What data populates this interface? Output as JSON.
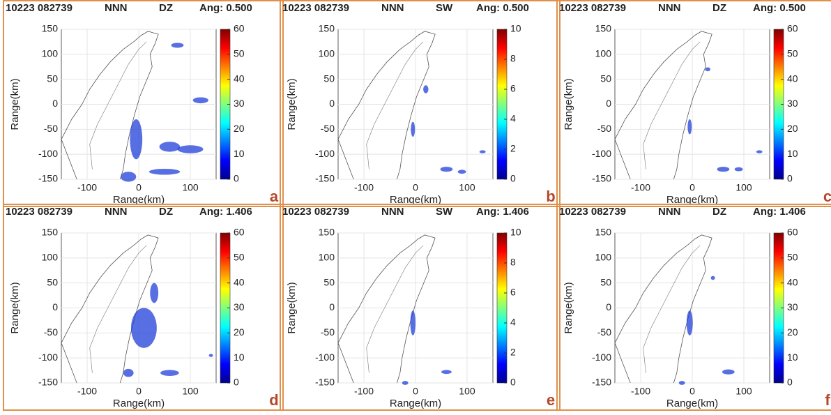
{
  "chart_data": [
    {
      "type": "radar",
      "title": [
        "10223 082739",
        "NNN",
        "DZ",
        "Ang: 0.500"
      ],
      "xlabel": "Range(km)",
      "ylabel": "Range(km)",
      "xlim": [
        -150,
        150
      ],
      "ylim": [
        -150,
        150
      ],
      "xticks": [
        -100,
        0,
        100
      ],
      "yticks": [
        -150,
        -100,
        -50,
        0,
        50,
        100,
        150
      ],
      "grid": true,
      "colorbar": {
        "lim": [
          0,
          60
        ],
        "ticks": [
          0,
          10,
          20,
          30,
          40,
          50,
          60
        ]
      },
      "panel_label": "a"
    },
    {
      "type": "radar",
      "title": [
        "10223 082739",
        "NNN",
        "SW",
        "Ang: 0.500"
      ],
      "xlabel": "Range(km)",
      "ylabel": "Range(km)",
      "xlim": [
        -150,
        150
      ],
      "ylim": [
        -150,
        150
      ],
      "xticks": [
        -100,
        0,
        100
      ],
      "yticks": [
        -150,
        -100,
        -50,
        0,
        50,
        100,
        150
      ],
      "grid": true,
      "colorbar": {
        "lim": [
          0,
          10
        ],
        "ticks": [
          0,
          2,
          4,
          6,
          8,
          10
        ]
      },
      "panel_label": "b"
    },
    {
      "type": "radar",
      "title": [
        "10223 082739",
        "NNN",
        "DZ",
        "Ang: 0.500"
      ],
      "xlabel": "Range(km)",
      "ylabel": "Range(km)",
      "xlim": [
        -150,
        150
      ],
      "ylim": [
        -150,
        150
      ],
      "xticks": [
        -100,
        0,
        100
      ],
      "yticks": [
        -150,
        -100,
        -50,
        0,
        50,
        100,
        150
      ],
      "grid": true,
      "colorbar": {
        "lim": [
          0,
          60
        ],
        "ticks": [
          0,
          10,
          20,
          30,
          40,
          50,
          60
        ]
      },
      "panel_label": "c"
    },
    {
      "type": "radar",
      "title": [
        "10223 082739",
        "NNN",
        "DZ",
        "Ang: 1.406"
      ],
      "xlabel": "Range(km)",
      "ylabel": "Range(km)",
      "xlim": [
        -150,
        150
      ],
      "ylim": [
        -150,
        150
      ],
      "xticks": [
        -100,
        0,
        100
      ],
      "yticks": [
        -150,
        -100,
        -50,
        0,
        50,
        100,
        150
      ],
      "grid": true,
      "colorbar": {
        "lim": [
          0,
          60
        ],
        "ticks": [
          0,
          10,
          20,
          30,
          40,
          50,
          60
        ]
      },
      "panel_label": "d"
    },
    {
      "type": "radar",
      "title": [
        "10223 082739",
        "NNN",
        "SW",
        "Ang: 1.406"
      ],
      "xlabel": "Range(km)",
      "ylabel": "Range(km)",
      "xlim": [
        -150,
        150
      ],
      "ylim": [
        -150,
        150
      ],
      "xticks": [
        -100,
        0,
        100
      ],
      "yticks": [
        -150,
        -100,
        -50,
        0,
        50,
        100,
        150
      ],
      "grid": true,
      "colorbar": {
        "lim": [
          0,
          10
        ],
        "ticks": [
          0,
          2,
          4,
          6,
          8,
          10
        ]
      },
      "panel_label": "e"
    },
    {
      "type": "radar",
      "title": [
        "10223 082739",
        "NNN",
        "DZ",
        "Ang: 1.406"
      ],
      "xlabel": "Range(km)",
      "ylabel": "Range(km)",
      "xlim": [
        -150,
        150
      ],
      "ylim": [
        -150,
        150
      ],
      "xticks": [
        -100,
        0,
        100
      ],
      "yticks": [
        -150,
        -100,
        -50,
        0,
        50,
        100,
        150
      ],
      "grid": true,
      "colorbar": {
        "lim": [
          0,
          60
        ],
        "ticks": [
          0,
          10,
          20,
          30,
          40,
          50,
          60
        ]
      },
      "panel_label": "f"
    }
  ]
}
